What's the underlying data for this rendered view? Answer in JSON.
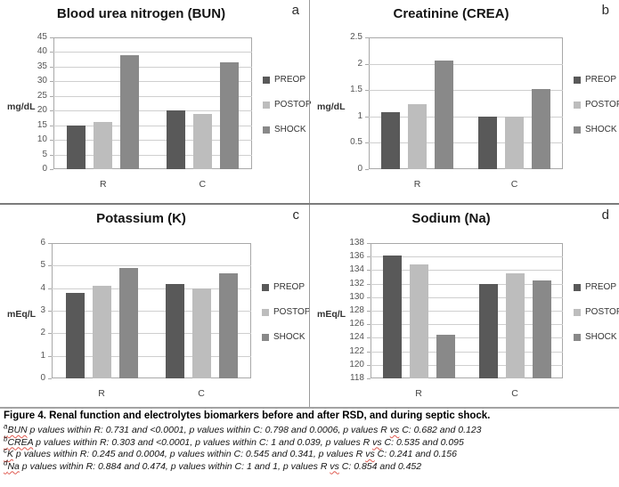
{
  "figure": {
    "caption": "Figure 4. Renal function and electrolytes biomarkers before and after RSD, and during septic shock.",
    "footnotes": [
      {
        "sup": "a",
        "term": "BUN",
        "mid": " p values within R: 0.731 and <0.0001, p values within C: 0.798 and 0.0006, p values R ",
        "vs": "vs",
        "end": " C: 0.682 and 0.123"
      },
      {
        "sup": "b",
        "term": "CREA",
        "mid": " p values within R: 0.303 and <0.0001, p values within C: 1 and 0.039, p values R ",
        "vs": "vs",
        "end": " C: 0.535 and 0.095"
      },
      {
        "sup": "c",
        "term": "K",
        "mid": " p values within R: 0.245 and 0.0004, p values within C: 0.545 and 0.341, p values R ",
        "vs": "vs",
        "end": " C: 0.241 and 0.156"
      },
      {
        "sup": "d",
        "term": "Na",
        "mid": " p values within R: 0.884 and 0.474, p values within C: 1 and 1, p values R ",
        "vs": "vs",
        "end": " C: 0.854 and 0.452"
      }
    ]
  },
  "colors": {
    "preop": "#595959",
    "postop": "#bdbdbd",
    "shock": "#898989"
  },
  "chart_data": [
    {
      "type": "bar",
      "panel_label": "a",
      "title": "Blood urea nitrogen (BUN)",
      "ylabel": "mg/dL",
      "categories": [
        "R",
        "C"
      ],
      "series": [
        {
          "name": "PREOP",
          "color": "#595959",
          "values": [
            15,
            20.1
          ]
        },
        {
          "name": "POSTOP",
          "color": "#bdbdbd",
          "values": [
            16.1,
            19
          ]
        },
        {
          "name": "SHOCK",
          "color": "#898989",
          "values": [
            39,
            36.4
          ]
        }
      ],
      "ylim": [
        0,
        45
      ],
      "ytick_step": 5,
      "grid": true,
      "legend_position": "right"
    },
    {
      "type": "bar",
      "panel_label": "b",
      "title": "Creatinine (CREA)",
      "ylabel": "mg/dL",
      "categories": [
        "R",
        "C"
      ],
      "series": [
        {
          "name": "PREOP",
          "color": "#595959",
          "values": [
            1.08,
            1.0
          ]
        },
        {
          "name": "POSTOP",
          "color": "#bdbdbd",
          "values": [
            1.24,
            1.0
          ]
        },
        {
          "name": "SHOCK",
          "color": "#898989",
          "values": [
            2.06,
            1.52
          ]
        }
      ],
      "ylim": [
        0,
        2.5
      ],
      "ytick_step": 0.5,
      "grid": true,
      "legend_position": "right"
    },
    {
      "type": "bar",
      "panel_label": "c",
      "title": "Potassium (K)",
      "ylabel": "mEq/L",
      "categories": [
        "R",
        "C"
      ],
      "series": [
        {
          "name": "PREOP",
          "color": "#595959",
          "values": [
            3.8,
            4.2
          ]
        },
        {
          "name": "POSTOP",
          "color": "#bdbdbd",
          "values": [
            4.1,
            4.0
          ]
        },
        {
          "name": "SHOCK",
          "color": "#898989",
          "values": [
            4.88,
            4.65
          ]
        }
      ],
      "ylim": [
        0,
        6
      ],
      "ytick_step": 1,
      "grid": true,
      "legend_position": "right"
    },
    {
      "type": "bar",
      "panel_label": "d",
      "title": "Sodium (Na)",
      "ylabel": "mEq/L",
      "categories": [
        "R",
        "C"
      ],
      "series": [
        {
          "name": "PREOP",
          "color": "#595959",
          "values": [
            136.2,
            132
          ]
        },
        {
          "name": "POSTOP",
          "color": "#bdbdbd",
          "values": [
            134.8,
            133.5
          ]
        },
        {
          "name": "SHOCK",
          "color": "#898989",
          "values": [
            124.4,
            132.5
          ]
        }
      ],
      "ylim": [
        118,
        138
      ],
      "ytick_step": 2,
      "grid": true,
      "legend_position": "right"
    }
  ]
}
